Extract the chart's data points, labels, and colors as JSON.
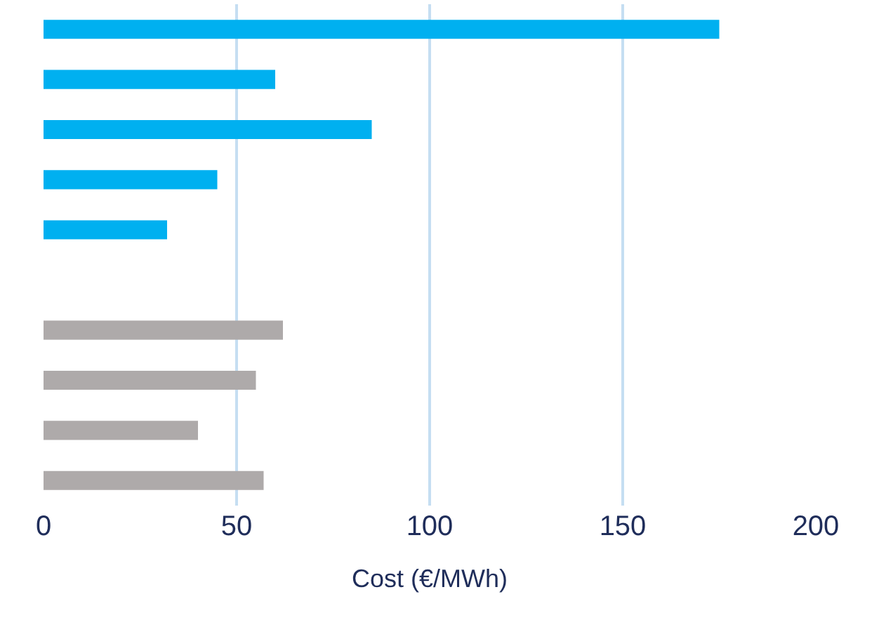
{
  "chart_data": {
    "type": "bar",
    "orientation": "horizontal",
    "xlabel": "Cost (€/MWh)",
    "categories": [
      null,
      null,
      null,
      null,
      null,
      null,
      null,
      null,
      null,
      null
    ],
    "values": [
      175,
      60,
      85,
      45,
      32,
      null,
      62,
      55,
      40,
      57
    ],
    "colors": [
      "#00b0f0",
      "#00b0f0",
      "#00b0f0",
      "#00b0f0",
      "#00b0f0",
      "#00b0f0",
      "#aeaaaa",
      "#aeaaaa",
      "#aeaaaa",
      "#aeaaaa"
    ],
    "xlim": [
      0,
      200
    ],
    "xticks": [
      0,
      50,
      100,
      150,
      200
    ],
    "grid": "x",
    "tick_labels": "x"
  }
}
